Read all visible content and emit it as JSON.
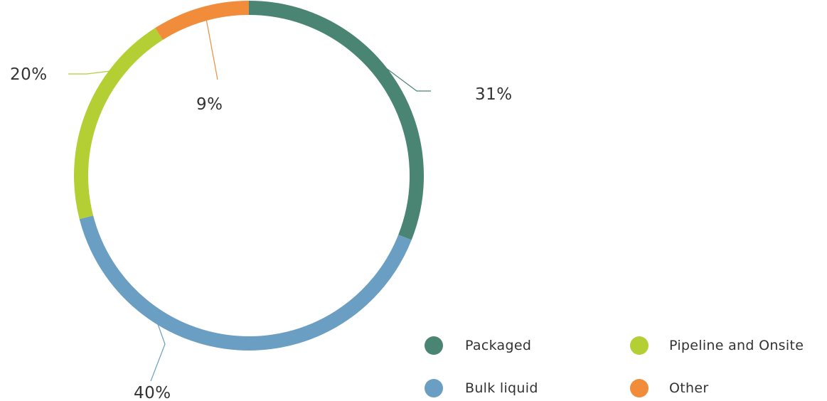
{
  "chart_data": {
    "type": "pie",
    "style": "donut",
    "categories": [
      "Packaged",
      "Bulk liquid",
      "Pipeline and Onsite",
      "Other"
    ],
    "values": [
      31,
      40,
      20,
      9
    ],
    "labels": [
      "31%",
      "40%",
      "20%",
      "9%"
    ],
    "colors": [
      "#4a8574",
      "#6a9ec3",
      "#b4cf34",
      "#f08c3a"
    ],
    "legend": {
      "position": "bottom-right",
      "items": [
        {
          "label": "Packaged",
          "color": "#4a8574"
        },
        {
          "label": "Pipeline and Onsite",
          "color": "#b4cf34"
        },
        {
          "label": "Bulk liquid",
          "color": "#6a9ec3"
        },
        {
          "label": "Other",
          "color": "#f08c3a"
        }
      ]
    }
  }
}
